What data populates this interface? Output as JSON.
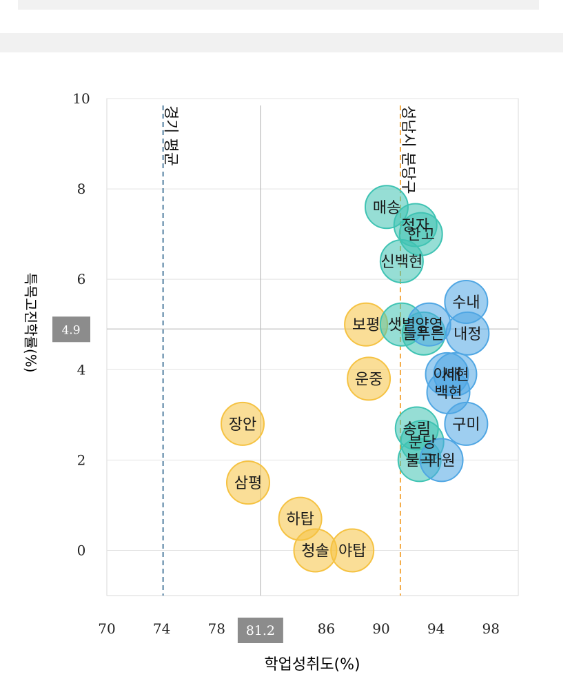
{
  "chart_data": {
    "type": "scatter",
    "xlabel": "학업성취도(%)",
    "ylabel": "특목고진학률(%)",
    "xlim": [
      70,
      100
    ],
    "ylim": [
      -1,
      10
    ],
    "x_ticks": [
      "70",
      "74",
      "78",
      "86",
      "90",
      "94",
      "98"
    ],
    "y_ticks": [
      "0",
      "2",
      "4",
      "6",
      "8",
      "10"
    ],
    "grid": true,
    "reference_lines": [
      {
        "label": "경기 평균",
        "axis": "x",
        "value": 74.1,
        "style": "dashed",
        "color": "#3b6e94"
      },
      {
        "label": "성남시 분당구",
        "axis": "x",
        "value": 91.4,
        "style": "dashed",
        "color": "#f2a02e"
      },
      {
        "label": "81.2",
        "axis": "x",
        "value": 81.2,
        "style": "solid",
        "color": "#bfbfbf"
      },
      {
        "label": "4.9",
        "axis": "y",
        "value": 4.9,
        "style": "solid",
        "color": "#bfbfbf"
      }
    ],
    "colors": {
      "yellow": "#f5c242",
      "teal": "#3fc3b3",
      "blue": "#4fa6e3"
    },
    "series": [
      {
        "color": "yellow",
        "points": [
          {
            "label": "장안",
            "x": 79.9,
            "y": 2.8
          },
          {
            "label": "삼평",
            "x": 80.3,
            "y": 1.5
          },
          {
            "label": "하탑",
            "x": 84.1,
            "y": 0.7
          },
          {
            "label": "청솔",
            "x": 85.2,
            "y": 0.0
          },
          {
            "label": "야탑",
            "x": 87.9,
            "y": 0.0
          },
          {
            "label": "운중",
            "x": 89.1,
            "y": 3.8
          },
          {
            "label": "보평",
            "x": 88.9,
            "y": 5.0
          }
        ]
      },
      {
        "color": "teal",
        "points": [
          {
            "label": "매송",
            "x": 90.4,
            "y": 7.6
          },
          {
            "label": "정자",
            "x": 92.5,
            "y": 7.2
          },
          {
            "label": "한고",
            "x": 92.9,
            "y": 7.0
          },
          {
            "label": "신백현",
            "x": 91.5,
            "y": 6.4
          },
          {
            "label": "샛별",
            "x": 91.5,
            "y": 5.0
          },
          {
            "label": "늘푸른",
            "x": 93.1,
            "y": 4.8
          },
          {
            "label": "송림",
            "x": 92.6,
            "y": 2.7
          },
          {
            "label": "분당",
            "x": 93.0,
            "y": 2.4
          },
          {
            "label": "불곡",
            "x": 92.8,
            "y": 2.0
          }
        ]
      },
      {
        "color": "blue",
        "points": [
          {
            "label": "양영",
            "x": 93.5,
            "y": 5.0
          },
          {
            "label": "수내",
            "x": 96.2,
            "y": 5.5
          },
          {
            "label": "내정",
            "x": 96.3,
            "y": 4.8
          },
          {
            "label": "서현",
            "x": 95.4,
            "y": 3.9
          },
          {
            "label": "이매",
            "x": 94.8,
            "y": 3.9
          },
          {
            "label": "백현",
            "x": 94.9,
            "y": 3.5
          },
          {
            "label": "구미",
            "x": 96.2,
            "y": 2.8
          },
          {
            "label": "파원",
            "x": 94.4,
            "y": 2.0
          }
        ]
      }
    ]
  }
}
